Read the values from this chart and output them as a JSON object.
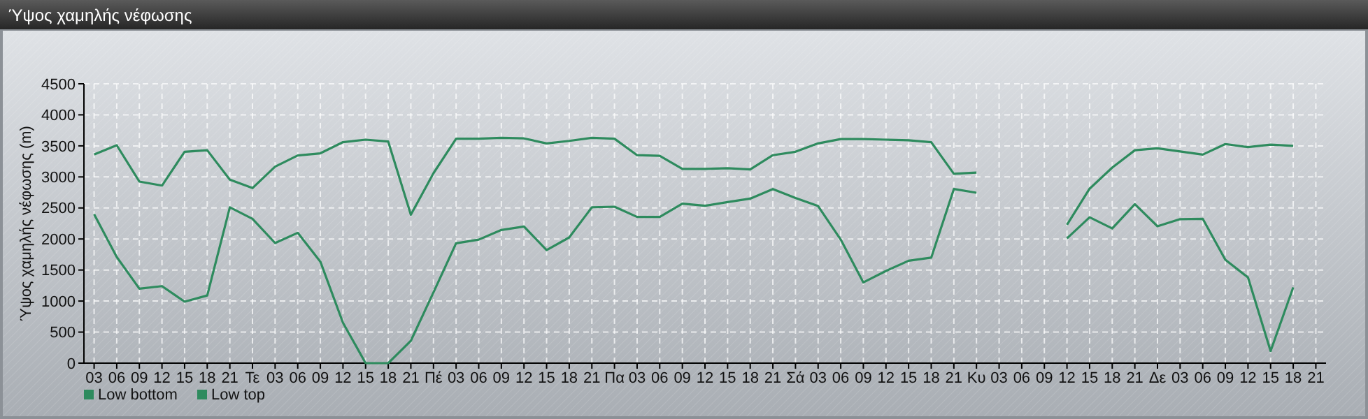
{
  "chart_data": {
    "type": "line",
    "title": "Ύψος χαμηλής νέφωσης",
    "ylabel": "Ύψος χαμηλής νέφωσης (m)",
    "categories": [
      "03",
      "06",
      "09",
      "12",
      "15",
      "18",
      "21",
      "Τε",
      "03",
      "06",
      "09",
      "12",
      "15",
      "18",
      "21",
      "Πέ",
      "03",
      "06",
      "09",
      "12",
      "15",
      "18",
      "21",
      "Πα",
      "03",
      "06",
      "09",
      "12",
      "15",
      "18",
      "21",
      "Σά",
      "03",
      "06",
      "09",
      "12",
      "15",
      "18",
      "21",
      "Κυ",
      "03",
      "06",
      "09",
      "12",
      "15",
      "18",
      "21",
      "Δε",
      "03",
      "06",
      "09",
      "12",
      "15",
      "18",
      "21"
    ],
    "series": [
      {
        "name": "Low bottom",
        "color": "#2e8b5e",
        "values": [
          2400,
          1710,
          1200,
          1240,
          990,
          1090,
          2510,
          2325,
          1935,
          2100,
          1635,
          650,
          0,
          0,
          360,
          1140,
          1930,
          1990,
          2145,
          2200,
          1820,
          2025,
          2510,
          2520,
          2355,
          2355,
          2570,
          2535,
          2595,
          2650,
          2805,
          2660,
          2530,
          1990,
          1300,
          1485,
          1650,
          1700,
          2805,
          2745,
          null,
          null,
          null,
          2010,
          2350,
          2170,
          2560,
          2205,
          2320,
          2325,
          1665,
          1380,
          195,
          1220,
          null
        ]
      },
      {
        "name": "Low top",
        "color": "#2e8b5e",
        "values": [
          3360,
          3510,
          2925,
          2860,
          3405,
          3430,
          2955,
          2820,
          3165,
          3345,
          3380,
          3560,
          3600,
          3570,
          2390,
          3060,
          3615,
          3615,
          3630,
          3620,
          3540,
          3580,
          3630,
          3615,
          3350,
          3340,
          3130,
          3130,
          3140,
          3120,
          3350,
          3405,
          3540,
          3610,
          3610,
          3600,
          3590,
          3560,
          3050,
          3070,
          null,
          null,
          null,
          2230,
          2810,
          3150,
          3430,
          3460,
          3410,
          3360,
          3530,
          3480,
          3520,
          3500,
          null
        ]
      }
    ],
    "ylim": [
      0,
      4500
    ],
    "yticks": [
      0,
      500,
      1000,
      1500,
      2000,
      2500,
      3000,
      3500,
      4000,
      4500
    ],
    "grid": true,
    "legend": "bottom left",
    "marker": "none",
    "line_style": "solid"
  }
}
